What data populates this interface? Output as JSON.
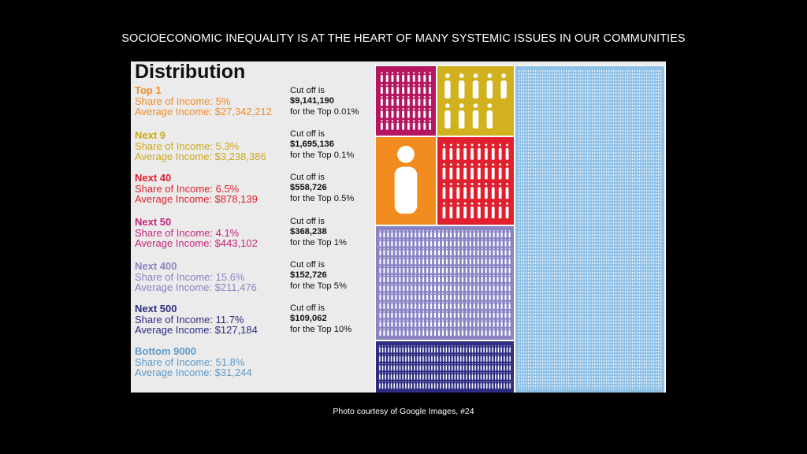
{
  "slide": {
    "title": "SOCIOECONOMIC INEQUALITY IS AT THE HEART OF MANY SYSTEMIC ISSUES IN OUR COMMUNITIES",
    "credit": "Photo courtesy of Google Images, #24"
  },
  "infographic": {
    "heading": "Distribution",
    "groups": [
      {
        "name": "Top 1",
        "share": "Share of Income: 5%",
        "avg": "Average Income: $27,342,212",
        "color": "#f28c28"
      },
      {
        "name": "Next 9",
        "share": "Share of Income: 5.3%",
        "avg": "Average Income: $3,238,386",
        "color": "#cfa81c"
      },
      {
        "name": "Next 40",
        "share": "Share of Income: 6.5%",
        "avg": "Average Income: $878,139",
        "color": "#e0202e"
      },
      {
        "name": "Next 50",
        "share": "Share of Income: 4.1%",
        "avg": "Average Income: $443,102",
        "color": "#c6267c"
      },
      {
        "name": "Next 400",
        "share": "Share of Income: 15.6%",
        "avg": "Average Income: $211,476",
        "color": "#8a84c4"
      },
      {
        "name": "Next 500",
        "share": "Share of Income: 11.7%",
        "avg": "Average Income: $127,184",
        "color": "#2d2e83"
      },
      {
        "name": "Bottom 9000",
        "share": "Share of Income: 51.8%",
        "avg": "Average Income: $31,244",
        "color": "#5e9ac9"
      }
    ],
    "cutoffs": [
      {
        "label": "Cut off is",
        "amount": "$9,141,190",
        "desc": "for the Top 0.01%"
      },
      {
        "label": "Cut off is",
        "amount": "$1,695,136",
        "desc": "for the Top 0.1%"
      },
      {
        "label": "Cut off is",
        "amount": "$558,726",
        "desc": "for the Top 0.5%"
      },
      {
        "label": "Cut off is",
        "amount": "$368,238",
        "desc": "for the Top 1%"
      },
      {
        "label": "Cut off is",
        "amount": "$152,726",
        "desc": "for the Top 5%"
      },
      {
        "label": "Cut off is",
        "amount": "$109,062",
        "desc": "for the Top 10%"
      }
    ],
    "blocks": [
      {
        "group": "Next 50",
        "people": 50,
        "bg": "#b5165f"
      },
      {
        "group": "Next 9",
        "people": 9,
        "bg": "#d1b21e"
      },
      {
        "group": "Top 1",
        "people": 1,
        "bg": "#f28c1e"
      },
      {
        "group": "Next 40",
        "people": 40,
        "bg": "#e0202e"
      },
      {
        "group": "Next 400",
        "people": 400,
        "bg": "#8a84c4"
      },
      {
        "group": "Next 500",
        "people": 500,
        "bg": "#2d2e83"
      },
      {
        "group": "Bottom 9000",
        "people": 9000,
        "bg": "#8fc0e6"
      }
    ]
  }
}
